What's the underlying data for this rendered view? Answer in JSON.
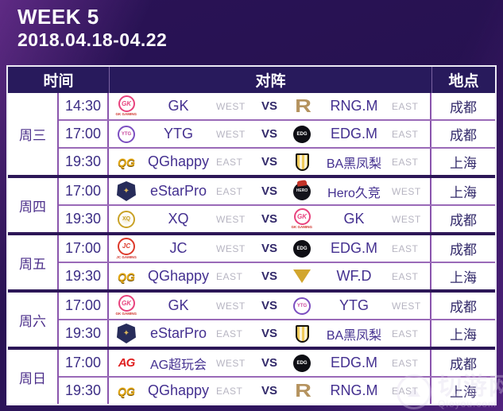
{
  "page": {
    "title_line1": "WEEK 5",
    "title_line2": "2018.04.18-04.22"
  },
  "colors": {
    "background_purple": "#2a1356",
    "header_bg": "#281a5c",
    "grid_line": "#8a55ad",
    "group_separator": "#2c1757",
    "team_text": "#443090",
    "region_text": "#b7b5c2",
    "accent_gold": "#b5935f",
    "accent_pink": "#e8427d"
  },
  "table": {
    "headers": {
      "time": "时间",
      "matchup": "对阵",
      "location": "地点"
    },
    "vs_label": "VS",
    "days": [
      {
        "day": "周三",
        "matches": [
          {
            "time": "14:30",
            "home": {
              "name": "GK",
              "region": "WEST",
              "logo": "gk"
            },
            "away": {
              "name": "RNG.M",
              "region": "EAST",
              "logo": "rng"
            },
            "location": "成都"
          },
          {
            "time": "17:00",
            "home": {
              "name": "YTG",
              "region": "WEST",
              "logo": "ytg"
            },
            "away": {
              "name": "EDG.M",
              "region": "EAST",
              "logo": "edg"
            },
            "location": "成都"
          },
          {
            "time": "19:30",
            "home": {
              "name": "QGhappy",
              "region": "EAST",
              "logo": "qg"
            },
            "away": {
              "name": "BA黑凤梨",
              "region": "EAST",
              "logo": "ba"
            },
            "location": "上海"
          }
        ]
      },
      {
        "day": "周四",
        "matches": [
          {
            "time": "17:00",
            "home": {
              "name": "eStarPro",
              "region": "EAST",
              "logo": "estar"
            },
            "away": {
              "name": "Hero久竞",
              "region": "WEST",
              "logo": "hero"
            },
            "location": "上海"
          },
          {
            "time": "19:30",
            "home": {
              "name": "XQ",
              "region": "WEST",
              "logo": "xq"
            },
            "away": {
              "name": "GK",
              "region": "WEST",
              "logo": "gk"
            },
            "location": "成都"
          }
        ]
      },
      {
        "day": "周五",
        "matches": [
          {
            "time": "17:00",
            "home": {
              "name": "JC",
              "region": "WEST",
              "logo": "jc"
            },
            "away": {
              "name": "EDG.M",
              "region": "EAST",
              "logo": "edg"
            },
            "location": "成都"
          },
          {
            "time": "19:30",
            "home": {
              "name": "QGhappy",
              "region": "EAST",
              "logo": "qg"
            },
            "away": {
              "name": "WF.D",
              "region": "EAST",
              "logo": "wfd"
            },
            "location": "上海"
          }
        ]
      },
      {
        "day": "周六",
        "matches": [
          {
            "time": "17:00",
            "home": {
              "name": "GK",
              "region": "WEST",
              "logo": "gk"
            },
            "away": {
              "name": "YTG",
              "region": "WEST",
              "logo": "ytg"
            },
            "location": "成都"
          },
          {
            "time": "19:30",
            "home": {
              "name": "eStarPro",
              "region": "EAST",
              "logo": "estar"
            },
            "away": {
              "name": "BA黑凤梨",
              "region": "EAST",
              "logo": "ba"
            },
            "location": "上海"
          }
        ]
      },
      {
        "day": "周日",
        "matches": [
          {
            "time": "17:00",
            "home": {
              "name": "AG超玩会",
              "region": "WEST",
              "logo": "ag"
            },
            "away": {
              "name": "EDG.M",
              "region": "EAST",
              "logo": "edg"
            },
            "location": "成都"
          },
          {
            "time": "19:30",
            "home": {
              "name": "QGhappy",
              "region": "EAST",
              "logo": "qg"
            },
            "away": {
              "name": "RNG.M",
              "region": "EAST",
              "logo": "rng"
            },
            "location": "上海"
          }
        ]
      }
    ]
  },
  "logos": {
    "gk": {
      "label": "GK",
      "caption": "GK GAMING"
    },
    "rng": {
      "label": "R"
    },
    "ytg": {
      "label": "YTG"
    },
    "edg": {
      "label": "EDG"
    },
    "qg": {
      "label": "QG"
    },
    "ba": {
      "label": ""
    },
    "estar": {
      "label": "✦"
    },
    "hero": {
      "label": "HERO"
    },
    "xq": {
      "label": "XQ"
    },
    "jc": {
      "label": "JC",
      "caption": "JC GAMING"
    },
    "wfd": {
      "label": ""
    },
    "ag": {
      "label": "AG"
    }
  },
  "watermark": {
    "site_name": "切游网",
    "site_url": "Qieyou.com"
  }
}
